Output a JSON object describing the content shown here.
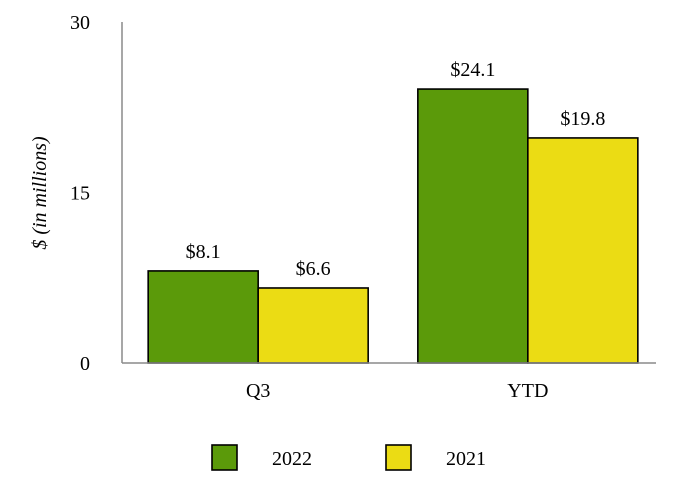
{
  "chart_data": {
    "type": "bar",
    "categories": [
      "Q3",
      "YTD"
    ],
    "series": [
      {
        "name": "2022",
        "values": [
          8.1,
          24.1
        ],
        "labels": [
          "$8.1",
          "$24.1"
        ],
        "color": "#5b9a0a"
      },
      {
        "name": "2021",
        "values": [
          6.6,
          19.8
        ],
        "labels": [
          "$6.6",
          "$19.8"
        ],
        "color": "#ebdc14"
      }
    ],
    "ylabel": "$ (in millions)",
    "ylim": [
      0,
      30
    ],
    "yticks": [
      "0",
      "15",
      "30"
    ],
    "grid": false,
    "legend": "bottom"
  }
}
